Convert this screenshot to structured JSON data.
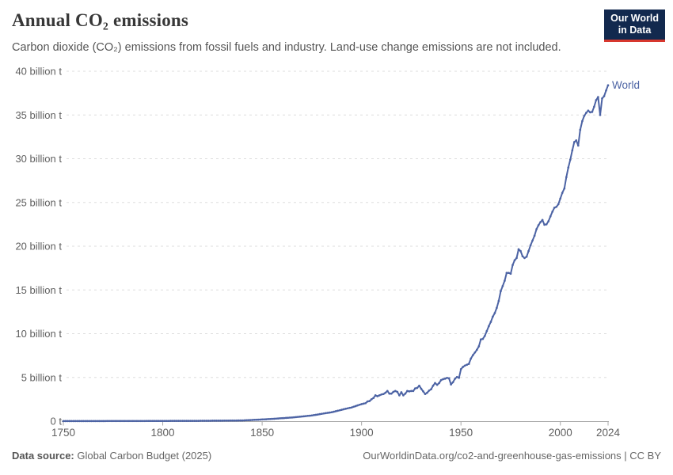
{
  "header": {
    "title": "Annual CO₂ emissions",
    "subtitle": "Carbon dioxide (CO₂) emissions from fossil fuels and industry. Land-use change emissions are not included.",
    "logo": {
      "line1": "Our World",
      "line2": "in Data"
    }
  },
  "chart_data": {
    "type": "line",
    "title": "Annual CO₂ emissions",
    "xlabel": "",
    "ylabel": "",
    "xlim": [
      1750,
      2024
    ],
    "ylim": [
      0,
      40
    ],
    "grid": "horizontal-dashed",
    "legend_position": "end-of-line-label",
    "xticks": [
      {
        "value": 1750,
        "label": "1750"
      },
      {
        "value": 1800,
        "label": "1800"
      },
      {
        "value": 1850,
        "label": "1850"
      },
      {
        "value": 1900,
        "label": "1900"
      },
      {
        "value": 1950,
        "label": "1950"
      },
      {
        "value": 2000,
        "label": "2000"
      },
      {
        "value": 2024,
        "label": "2024"
      }
    ],
    "yticks": [
      {
        "value": 0,
        "label": "0 t"
      },
      {
        "value": 5,
        "label": "5 billion t"
      },
      {
        "value": 10,
        "label": "10 billion t"
      },
      {
        "value": 15,
        "label": "15 billion t"
      },
      {
        "value": 20,
        "label": "20 billion t"
      },
      {
        "value": 25,
        "label": "25 billion t"
      },
      {
        "value": 30,
        "label": "30 billion t"
      },
      {
        "value": 35,
        "label": "35 billion t"
      },
      {
        "value": 40,
        "label": "40 billion t"
      }
    ],
    "unit": "billion tonnes of CO₂ per year",
    "style": {
      "grid_color": "#dddddd",
      "axis_color": "#a8a8a8",
      "tick_color": "#606060",
      "background": "#ffffff"
    },
    "series": [
      {
        "name": "World",
        "color": "#4C63A4",
        "points": [
          [
            1750,
            0.009
          ],
          [
            1760,
            0.011
          ],
          [
            1770,
            0.013
          ],
          [
            1780,
            0.016
          ],
          [
            1790,
            0.021
          ],
          [
            1800,
            0.03
          ],
          [
            1810,
            0.035
          ],
          [
            1820,
            0.042
          ],
          [
            1830,
            0.058
          ],
          [
            1840,
            0.083
          ],
          [
            1850,
            0.196
          ],
          [
            1855,
            0.26
          ],
          [
            1860,
            0.34
          ],
          [
            1865,
            0.42
          ],
          [
            1870,
            0.53
          ],
          [
            1875,
            0.65
          ],
          [
            1880,
            0.84
          ],
          [
            1885,
            1.02
          ],
          [
            1890,
            1.3
          ],
          [
            1895,
            1.57
          ],
          [
            1900,
            1.95
          ],
          [
            1901,
            2.0
          ],
          [
            1902,
            2.05
          ],
          [
            1903,
            2.25
          ],
          [
            1904,
            2.3
          ],
          [
            1905,
            2.5
          ],
          [
            1906,
            2.65
          ],
          [
            1907,
            2.95
          ],
          [
            1908,
            2.85
          ],
          [
            1909,
            2.95
          ],
          [
            1910,
            3.05
          ],
          [
            1911,
            3.1
          ],
          [
            1912,
            3.25
          ],
          [
            1913,
            3.45
          ],
          [
            1914,
            3.15
          ],
          [
            1915,
            3.15
          ],
          [
            1916,
            3.35
          ],
          [
            1917,
            3.45
          ],
          [
            1918,
            3.35
          ],
          [
            1919,
            2.95
          ],
          [
            1920,
            3.3
          ],
          [
            1921,
            2.95
          ],
          [
            1922,
            3.15
          ],
          [
            1923,
            3.45
          ],
          [
            1924,
            3.4
          ],
          [
            1925,
            3.45
          ],
          [
            1926,
            3.45
          ],
          [
            1927,
            3.75
          ],
          [
            1928,
            3.8
          ],
          [
            1929,
            4.05
          ],
          [
            1930,
            3.7
          ],
          [
            1931,
            3.4
          ],
          [
            1932,
            3.1
          ],
          [
            1933,
            3.25
          ],
          [
            1934,
            3.5
          ],
          [
            1935,
            3.65
          ],
          [
            1936,
            4.05
          ],
          [
            1937,
            4.35
          ],
          [
            1938,
            4.15
          ],
          [
            1939,
            4.35
          ],
          [
            1940,
            4.7
          ],
          [
            1941,
            4.8
          ],
          [
            1942,
            4.85
          ],
          [
            1943,
            4.95
          ],
          [
            1944,
            4.9
          ],
          [
            1945,
            4.2
          ],
          [
            1946,
            4.45
          ],
          [
            1947,
            4.85
          ],
          [
            1948,
            5.05
          ],
          [
            1949,
            4.95
          ],
          [
            1950,
            5.95
          ],
          [
            1951,
            6.2
          ],
          [
            1952,
            6.35
          ],
          [
            1953,
            6.45
          ],
          [
            1954,
            6.55
          ],
          [
            1955,
            7.15
          ],
          [
            1956,
            7.55
          ],
          [
            1957,
            7.85
          ],
          [
            1958,
            8.15
          ],
          [
            1959,
            8.55
          ],
          [
            1960,
            9.35
          ],
          [
            1961,
            9.4
          ],
          [
            1962,
            9.75
          ],
          [
            1963,
            10.3
          ],
          [
            1964,
            10.85
          ],
          [
            1965,
            11.35
          ],
          [
            1966,
            11.95
          ],
          [
            1967,
            12.35
          ],
          [
            1968,
            12.95
          ],
          [
            1969,
            13.75
          ],
          [
            1970,
            14.85
          ],
          [
            1971,
            15.45
          ],
          [
            1972,
            16.05
          ],
          [
            1973,
            16.95
          ],
          [
            1974,
            16.95
          ],
          [
            1975,
            16.85
          ],
          [
            1976,
            17.85
          ],
          [
            1977,
            18.4
          ],
          [
            1978,
            18.65
          ],
          [
            1979,
            19.65
          ],
          [
            1980,
            19.45
          ],
          [
            1981,
            18.85
          ],
          [
            1982,
            18.65
          ],
          [
            1983,
            18.8
          ],
          [
            1984,
            19.45
          ],
          [
            1985,
            20.1
          ],
          [
            1986,
            20.65
          ],
          [
            1987,
            21.2
          ],
          [
            1988,
            21.95
          ],
          [
            1989,
            22.4
          ],
          [
            1990,
            22.75
          ],
          [
            1991,
            23.0
          ],
          [
            1992,
            22.45
          ],
          [
            1993,
            22.5
          ],
          [
            1994,
            22.85
          ],
          [
            1995,
            23.4
          ],
          [
            1996,
            23.95
          ],
          [
            1997,
            24.4
          ],
          [
            1998,
            24.5
          ],
          [
            1999,
            24.8
          ],
          [
            2000,
            25.45
          ],
          [
            2001,
            26.1
          ],
          [
            2002,
            26.6
          ],
          [
            2003,
            27.9
          ],
          [
            2004,
            29.0
          ],
          [
            2005,
            29.9
          ],
          [
            2006,
            30.95
          ],
          [
            2007,
            31.9
          ],
          [
            2008,
            32.1
          ],
          [
            2009,
            31.5
          ],
          [
            2010,
            33.3
          ],
          [
            2011,
            34.3
          ],
          [
            2012,
            34.9
          ],
          [
            2013,
            35.25
          ],
          [
            2014,
            35.5
          ],
          [
            2015,
            35.3
          ],
          [
            2016,
            35.35
          ],
          [
            2017,
            35.95
          ],
          [
            2018,
            36.7
          ],
          [
            2019,
            37.05
          ],
          [
            2020,
            35.0
          ],
          [
            2021,
            36.9
          ],
          [
            2022,
            37.15
          ],
          [
            2023,
            37.8
          ],
          [
            2024,
            38.4
          ]
        ]
      }
    ]
  },
  "footer": {
    "source_label": "Data source:",
    "source_value": " Global Carbon Budget (2025)",
    "note": "OurWorldinData.org/co2-and-greenhouse-gas-emissions | CC BY"
  }
}
